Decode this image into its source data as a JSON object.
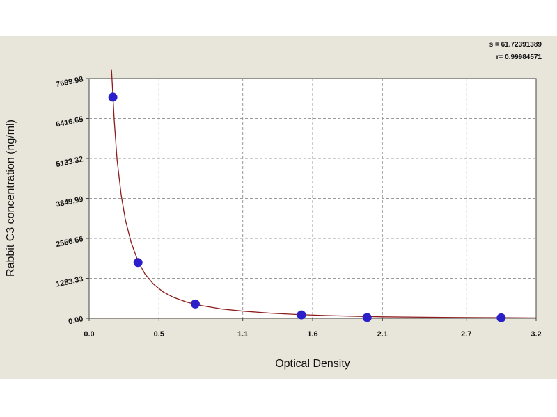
{
  "chart_data": {
    "type": "scatter",
    "title": "",
    "xlabel": "Optical Density",
    "ylabel": "Rabbit C3 concentration (ng/ml)",
    "xlim": [
      0.0,
      3.2
    ],
    "ylim": [
      0.0,
      7700.0
    ],
    "x_ticks": [
      {
        "value": 0.0,
        "label": "0.0"
      },
      {
        "value": 0.5,
        "label": "0.5"
      },
      {
        "value": 1.1,
        "label": "1.1"
      },
      {
        "value": 1.6,
        "label": "1.6"
      },
      {
        "value": 2.1,
        "label": "2.1"
      },
      {
        "value": 2.7,
        "label": "2.7"
      },
      {
        "value": 3.2,
        "label": "3.2"
      }
    ],
    "y_ticks": [
      {
        "value": 0.0,
        "label": "0.00"
      },
      {
        "value": 1283.33,
        "label": "1283.33"
      },
      {
        "value": 2566.66,
        "label": "2566.66"
      },
      {
        "value": 3849.99,
        "label": "3849.99"
      },
      {
        "value": 5133.32,
        "label": "5133.32"
      },
      {
        "value": 6416.65,
        "label": "6416.65"
      },
      {
        "value": 7699.98,
        "label": "7699.98"
      }
    ],
    "grid": true,
    "points": [
      {
        "x": 0.17,
        "y": 7100
      },
      {
        "x": 0.35,
        "y": 1790
      },
      {
        "x": 0.76,
        "y": 460
      },
      {
        "x": 1.52,
        "y": 110
      },
      {
        "x": 1.99,
        "y": 25
      },
      {
        "x": 2.95,
        "y": 15
      }
    ],
    "fit_curve": [
      {
        "x": 0.16,
        "y": 8000
      },
      {
        "x": 0.18,
        "y": 6350
      },
      {
        "x": 0.2,
        "y": 5100
      },
      {
        "x": 0.23,
        "y": 3950
      },
      {
        "x": 0.26,
        "y": 3150
      },
      {
        "x": 0.3,
        "y": 2450
      },
      {
        "x": 0.35,
        "y": 1830
      },
      {
        "x": 0.4,
        "y": 1420
      },
      {
        "x": 0.46,
        "y": 1100
      },
      {
        "x": 0.53,
        "y": 850
      },
      {
        "x": 0.6,
        "y": 680
      },
      {
        "x": 0.7,
        "y": 520
      },
      {
        "x": 0.8,
        "y": 410
      },
      {
        "x": 0.95,
        "y": 300
      },
      {
        "x": 1.1,
        "y": 230
      },
      {
        "x": 1.3,
        "y": 165
      },
      {
        "x": 1.5,
        "y": 120
      },
      {
        "x": 1.7,
        "y": 90
      },
      {
        "x": 1.9,
        "y": 68
      },
      {
        "x": 2.1,
        "y": 50
      },
      {
        "x": 2.4,
        "y": 35
      },
      {
        "x": 2.7,
        "y": 24
      },
      {
        "x": 3.0,
        "y": 17
      },
      {
        "x": 3.2,
        "y": 13
      }
    ],
    "stats": {
      "s": "s = 61.72391389",
      "r": "r= 0.99984571"
    },
    "colors": {
      "background": "#e8e6da",
      "plot_area": "#ffffff",
      "grid": "#9a9a9a",
      "curve": "#8b1a1a",
      "point": "#2a1fc8",
      "text": "#111111"
    }
  }
}
